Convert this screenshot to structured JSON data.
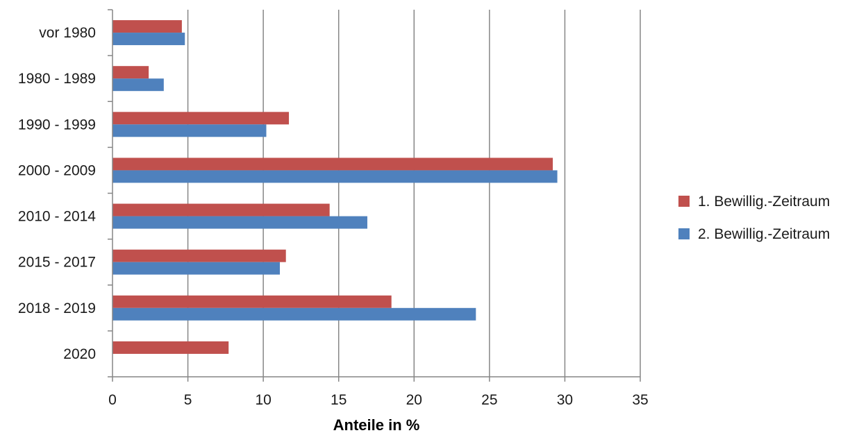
{
  "chart_data": {
    "type": "bar",
    "orientation": "horizontal",
    "categories": [
      "vor 1980",
      "1980 - 1989",
      "1990 - 1999",
      "2000 - 2009",
      "2010 - 2014",
      "2015 - 2017",
      "2018 - 2019",
      "2020"
    ],
    "series": [
      {
        "name": "1. Bewillig.-Zeitraum",
        "color": "#c0504d",
        "values": [
          4.6,
          2.4,
          11.7,
          29.2,
          14.4,
          11.5,
          18.5,
          7.7
        ]
      },
      {
        "name": "2. Bewillig.-Zeitraum",
        "color": "#4f81bd",
        "values": [
          4.8,
          3.4,
          10.2,
          29.5,
          16.9,
          11.1,
          24.1,
          null
        ]
      }
    ],
    "xlabel": "Anteile in %",
    "xlim": [
      0,
      35
    ],
    "xticks": [
      0,
      5,
      10,
      15,
      20,
      25,
      30,
      35
    ],
    "grid": "vertical major gridlines",
    "legend_position": "right"
  }
}
